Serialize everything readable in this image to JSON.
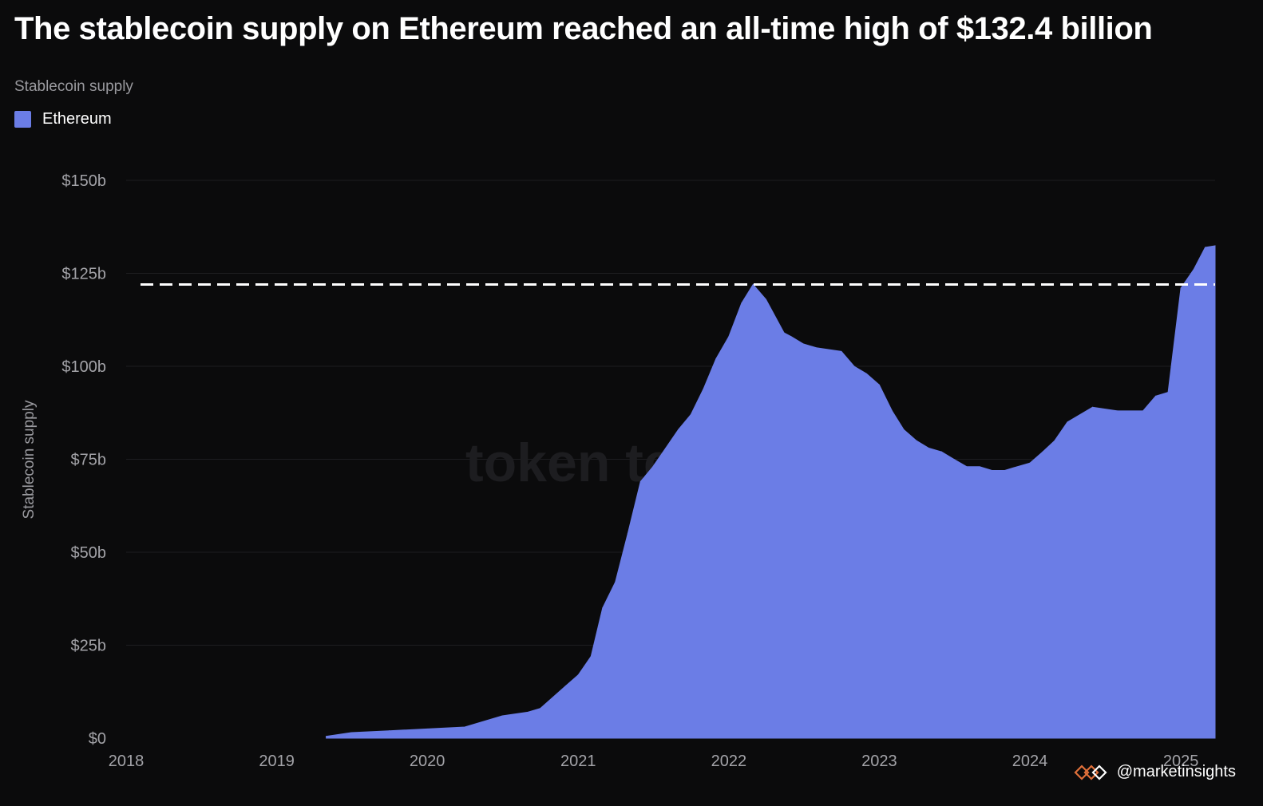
{
  "title": "The stablecoin supply on Ethereum reached an all-time high of $132.4 billion",
  "subtitle": "Stablecoin supply",
  "legend": [
    {
      "label": "Ethereum",
      "color": "#6b7de6"
    }
  ],
  "watermark": "token terminal_",
  "handle": "@marketinsights",
  "colors": {
    "background": "#0b0b0c",
    "series": "#6b7de6",
    "grid": "#1e1e21",
    "reference_line": "#ffffff",
    "tick_text": "#a3a3a8"
  },
  "chart_data": {
    "type": "area",
    "title": "The stablecoin supply on Ethereum reached an all-time high of $132.4 billion",
    "subtitle": "Stablecoin supply",
    "ylabel": "Stablecoin supply",
    "xlabel": "",
    "ylim": [
      0,
      150
    ],
    "y_ticks": [
      0,
      25,
      50,
      75,
      100,
      125,
      150
    ],
    "y_tick_labels": [
      "$0",
      "$25b",
      "$50b",
      "$75b",
      "$100b",
      "$125b",
      "$150b"
    ],
    "x_ticks": [
      "2018",
      "2019",
      "2020",
      "2021",
      "2022",
      "2023",
      "2024",
      "2025"
    ],
    "grid": true,
    "legend_position": "top-left",
    "reference_line": {
      "y": 122,
      "style": "dashed"
    },
    "series": [
      {
        "name": "Ethereum",
        "x": [
          "2019-05-01",
          "2019-07-01",
          "2019-10-01",
          "2020-01-01",
          "2020-04-01",
          "2020-07-01",
          "2020-09-01",
          "2020-10-01",
          "2020-12-01",
          "2021-01-01",
          "2021-02-01",
          "2021-03-01",
          "2021-04-01",
          "2021-05-01",
          "2021-06-01",
          "2021-07-01",
          "2021-08-01",
          "2021-09-01",
          "2021-10-01",
          "2021-11-01",
          "2021-12-01",
          "2022-01-01",
          "2022-02-01",
          "2022-03-01",
          "2022-04-01",
          "2022-05-15",
          "2022-06-01",
          "2022-07-01",
          "2022-08-01",
          "2022-10-01",
          "2022-11-01",
          "2022-12-01",
          "2023-01-01",
          "2023-02-01",
          "2023-03-01",
          "2023-04-01",
          "2023-05-01",
          "2023-06-01",
          "2023-07-01",
          "2023-08-01",
          "2023-09-01",
          "2023-10-01",
          "2023-11-01",
          "2023-12-01",
          "2024-01-01",
          "2024-02-01",
          "2024-03-01",
          "2024-04-01",
          "2024-06-01",
          "2024-08-01",
          "2024-10-01",
          "2024-11-01",
          "2024-12-01",
          "2025-01-01",
          "2025-02-01",
          "2025-03-01",
          "2025-03-25"
        ],
        "values": [
          0.5,
          1.5,
          2,
          2.5,
          3,
          6,
          7,
          8,
          14,
          17,
          22,
          35,
          42,
          55,
          69,
          73,
          78,
          83,
          87,
          94,
          102,
          108,
          117,
          122,
          118,
          109,
          108,
          106,
          105,
          104,
          100,
          98,
          95,
          88,
          83,
          80,
          78,
          77,
          75,
          73,
          73,
          72,
          72,
          73,
          74,
          77,
          80,
          85,
          89,
          88,
          88,
          92,
          93,
          121,
          126,
          132,
          132.4
        ]
      }
    ]
  }
}
